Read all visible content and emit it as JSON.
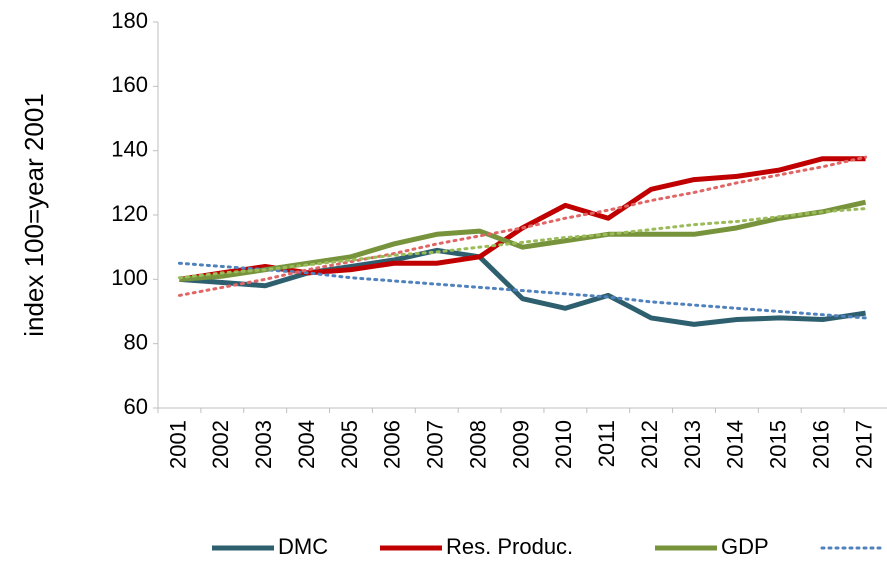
{
  "chart_data": {
    "type": "line",
    "y_label": "index 100=year 2001",
    "categories": [
      "2001",
      "2002",
      "2003",
      "2004",
      "2005",
      "2006",
      "2007",
      "2008",
      "2009",
      "2010",
      "2011",
      "2012",
      "2013",
      "2014",
      "2015",
      "2016",
      "2017"
    ],
    "series": [
      {
        "name": "DMC",
        "color": "#2e5f6e",
        "style": "solid",
        "values": [
          100,
          99,
          98,
          102,
          104,
          106,
          109,
          107,
          94,
          91,
          95,
          88,
          86,
          87.5,
          88,
          87.5,
          89.5
        ]
      },
      {
        "name": "Res. Produc.",
        "color": "#c00000",
        "style": "solid",
        "values": [
          100,
          102,
          104,
          102,
          103,
          105,
          105,
          107,
          116,
          123,
          119,
          128,
          131,
          132,
          134,
          137.5,
          137.5
        ]
      },
      {
        "name": "GDP",
        "color": "#77933c",
        "style": "solid",
        "values": [
          100,
          101,
          103,
          105,
          107,
          111,
          114,
          115,
          110,
          112,
          114,
          114,
          114,
          116,
          119,
          121,
          124
        ]
      },
      {
        "color": "#4f81bd",
        "style": "dotted",
        "legend": true,
        "values": [
          105,
          104,
          103,
          102,
          100.5,
          99.5,
          98.5,
          97.5,
          96.5,
          95.5,
          94.5,
          93,
          92,
          91,
          90,
          89,
          88
        ]
      },
      {
        "color": "#e06666",
        "style": "dotted",
        "values": [
          95,
          97.5,
          100,
          103,
          105.5,
          108,
          111,
          113.5,
          116,
          119,
          121.5,
          124.5,
          127,
          130,
          132.5,
          135,
          138
        ]
      },
      {
        "color": "#9bbb59",
        "style": "dotted",
        "values": [
          100.5,
          102,
          103,
          104.5,
          106,
          107.5,
          108.5,
          110,
          111.5,
          113,
          114,
          115.5,
          117,
          118,
          119.5,
          121,
          122
        ]
      }
    ],
    "ylim": [
      60,
      180
    ],
    "yticks": [
      60,
      80,
      100,
      120,
      140,
      160,
      180
    ],
    "grid": false
  }
}
